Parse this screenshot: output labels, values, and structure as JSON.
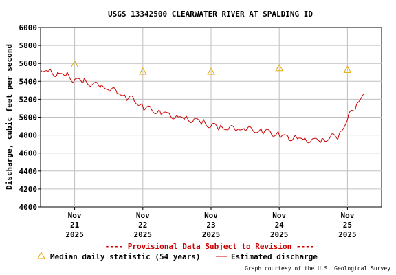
{
  "chart_data": {
    "type": "line",
    "title": "USGS 13342500 CLEARWATER RIVER AT SPALDING ID",
    "ylabel": "Discharge, cubic feet per second",
    "xlabel": "",
    "ylim": [
      4000,
      6000
    ],
    "yticks": [
      "4000",
      "4200",
      "4400",
      "4600",
      "4800",
      "5000",
      "5200",
      "5400",
      "5600",
      "5800",
      "6000"
    ],
    "xlim": [
      "2025-11-20T12:00",
      "2025-11-25T12:00"
    ],
    "xticks": [
      {
        "lines": [
          "Nov",
          "21",
          "2025"
        ],
        "x": "2025-11-21T00:00"
      },
      {
        "lines": [
          "Nov",
          "22",
          "2025"
        ],
        "x": "2025-11-22T00:00"
      },
      {
        "lines": [
          "Nov",
          "23",
          "2025"
        ],
        "x": "2025-11-23T00:00"
      },
      {
        "lines": [
          "Nov",
          "24",
          "2025"
        ],
        "x": "2025-11-24T00:00"
      },
      {
        "lines": [
          "Nov",
          "25",
          "2025"
        ],
        "x": "2025-11-25T00:00"
      }
    ],
    "grid": true,
    "colors": {
      "discharge": "#cc0000",
      "median": "#e6a700",
      "grid": "#c0c0c0",
      "provisional": "#cc0000"
    },
    "series": [
      {
        "name": "Estimated discharge",
        "x": [
          "2025-11-20T12:00",
          "2025-11-20T15:00",
          "2025-11-20T18:00",
          "2025-11-20T21:00",
          "2025-11-21T00:00",
          "2025-11-21T03:00",
          "2025-11-21T06:00",
          "2025-11-21T09:00",
          "2025-11-21T12:00",
          "2025-11-21T15:00",
          "2025-11-21T18:00",
          "2025-11-21T21:00",
          "2025-11-22T00:00",
          "2025-11-22T03:00",
          "2025-11-22T06:00",
          "2025-11-22T09:00",
          "2025-11-22T12:00",
          "2025-11-22T15:00",
          "2025-11-22T18:00",
          "2025-11-22T21:00",
          "2025-11-23T00:00",
          "2025-11-23T03:00",
          "2025-11-23T06:00",
          "2025-11-23T09:00",
          "2025-11-23T12:00",
          "2025-11-23T15:00",
          "2025-11-23T18:00",
          "2025-11-23T21:00",
          "2025-11-24T00:00",
          "2025-11-24T03:00",
          "2025-11-24T06:00",
          "2025-11-24T09:00",
          "2025-11-24T12:00",
          "2025-11-24T15:00",
          "2025-11-24T18:00",
          "2025-11-24T21:00",
          "2025-11-25T00:00",
          "2025-11-25T03:00",
          "2025-11-25T06:00"
        ],
        "values": [
          5540,
          5520,
          5500,
          5470,
          5420,
          5390,
          5360,
          5330,
          5300,
          5260,
          5220,
          5180,
          5120,
          5090,
          5070,
          5050,
          5020,
          5000,
          4980,
          4950,
          4900,
          4880,
          4860,
          4850,
          4850,
          4840,
          4830,
          4830,
          4800,
          4790,
          4780,
          4770,
          4760,
          4760,
          4780,
          4800,
          4970,
          5120,
          5260
        ]
      }
    ],
    "median_points": {
      "name": "Median daily statistic (54 years)",
      "x": [
        "2025-11-21T00:00",
        "2025-11-22T00:00",
        "2025-11-23T00:00",
        "2025-11-24T00:00",
        "2025-11-25T00:00"
      ],
      "values": [
        5590,
        5510,
        5510,
        5550,
        5530
      ]
    },
    "legend": {
      "median_label": "Median daily statistic (54 years)",
      "discharge_label": "Estimated discharge"
    },
    "provisional_text": "---- Provisional Data Subject to Revision ----",
    "credit": "Graph courtesy of the U.S. Geological Survey"
  }
}
